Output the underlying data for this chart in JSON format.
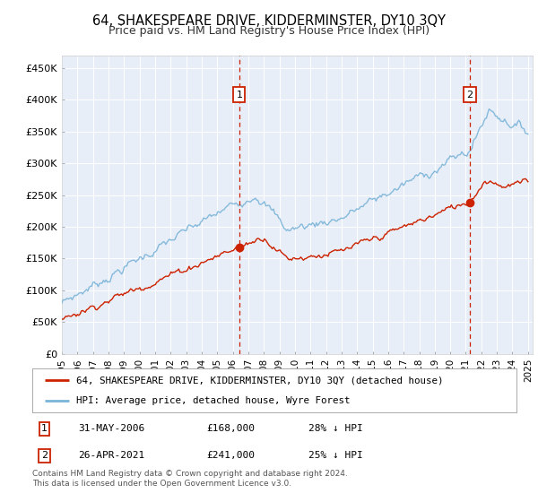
{
  "title": "64, SHAKESPEARE DRIVE, KIDDERMINSTER, DY10 3QY",
  "subtitle": "Price paid vs. HM Land Registry's House Price Index (HPI)",
  "ylabel_ticks": [
    "£0",
    "£50K",
    "£100K",
    "£150K",
    "£200K",
    "£250K",
    "£300K",
    "£350K",
    "£400K",
    "£450K"
  ],
  "ytick_vals": [
    0,
    50000,
    100000,
    150000,
    200000,
    250000,
    300000,
    350000,
    400000,
    450000
  ],
  "ylim": [
    0,
    470000
  ],
  "xlim_start": 1995.0,
  "xlim_end": 2025.3,
  "hpi_color": "#7ab4d8",
  "price_color": "#cc2200",
  "marker1_date": 2006.42,
  "marker2_date": 2021.25,
  "legend_line1": "64, SHAKESPEARE DRIVE, KIDDERMINSTER, DY10 3QY (detached house)",
  "legend_line2": "HPI: Average price, detached house, Wyre Forest",
  "table_row1": [
    "1",
    "31-MAY-2006",
    "£168,000",
    "28% ↓ HPI"
  ],
  "table_row2": [
    "2",
    "26-APR-2021",
    "£241,000",
    "25% ↓ HPI"
  ],
  "footer": "Contains HM Land Registry data © Crown copyright and database right 2024.\nThis data is licensed under the Open Government Licence v3.0.",
  "plot_bg_color": "#e8eef8"
}
